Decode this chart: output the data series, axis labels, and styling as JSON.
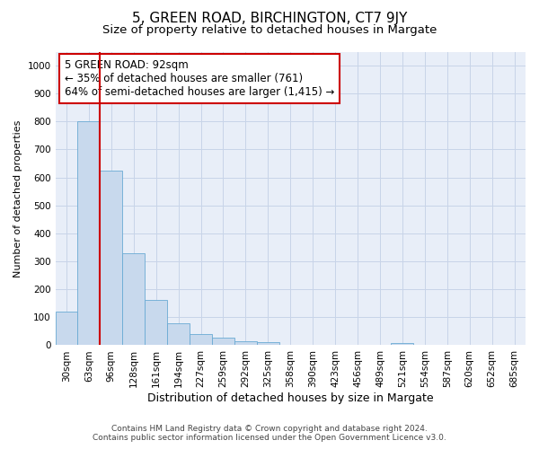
{
  "title": "5, GREEN ROAD, BIRCHINGTON, CT7 9JY",
  "subtitle": "Size of property relative to detached houses in Margate",
  "xlabel": "Distribution of detached houses by size in Margate",
  "ylabel": "Number of detached properties",
  "bar_values": [
    120,
    800,
    625,
    330,
    163,
    80,
    40,
    28,
    15,
    10,
    3,
    0,
    0,
    0,
    0,
    7,
    0,
    0,
    0,
    0,
    0
  ],
  "bar_labels": [
    "30sqm",
    "63sqm",
    "96sqm",
    "128sqm",
    "161sqm",
    "194sqm",
    "227sqm",
    "259sqm",
    "292sqm",
    "325sqm",
    "358sqm",
    "390sqm",
    "423sqm",
    "456sqm",
    "489sqm",
    "521sqm",
    "554sqm",
    "587sqm",
    "620sqm",
    "652sqm",
    "685sqm"
  ],
  "bar_color": "#c8d9ed",
  "bar_edge_color": "#6aaad4",
  "grid_color": "#c8d4e8",
  "background_color": "#e8eef8",
  "vline_x_index": 2,
  "vline_color": "#cc0000",
  "annotation_text": "5 GREEN ROAD: 92sqm\n← 35% of detached houses are smaller (761)\n64% of semi-detached houses are larger (1,415) →",
  "annotation_box_color": "#cc0000",
  "ylim": [
    0,
    1050
  ],
  "yticks": [
    0,
    100,
    200,
    300,
    400,
    500,
    600,
    700,
    800,
    900,
    1000
  ],
  "footer_line1": "Contains HM Land Registry data © Crown copyright and database right 2024.",
  "footer_line2": "Contains public sector information licensed under the Open Government Licence v3.0.",
  "title_fontsize": 11,
  "subtitle_fontsize": 9.5,
  "annotation_fontsize": 8.5,
  "xlabel_fontsize": 9,
  "ylabel_fontsize": 8,
  "tick_fontsize": 7.5,
  "footer_fontsize": 6.5
}
